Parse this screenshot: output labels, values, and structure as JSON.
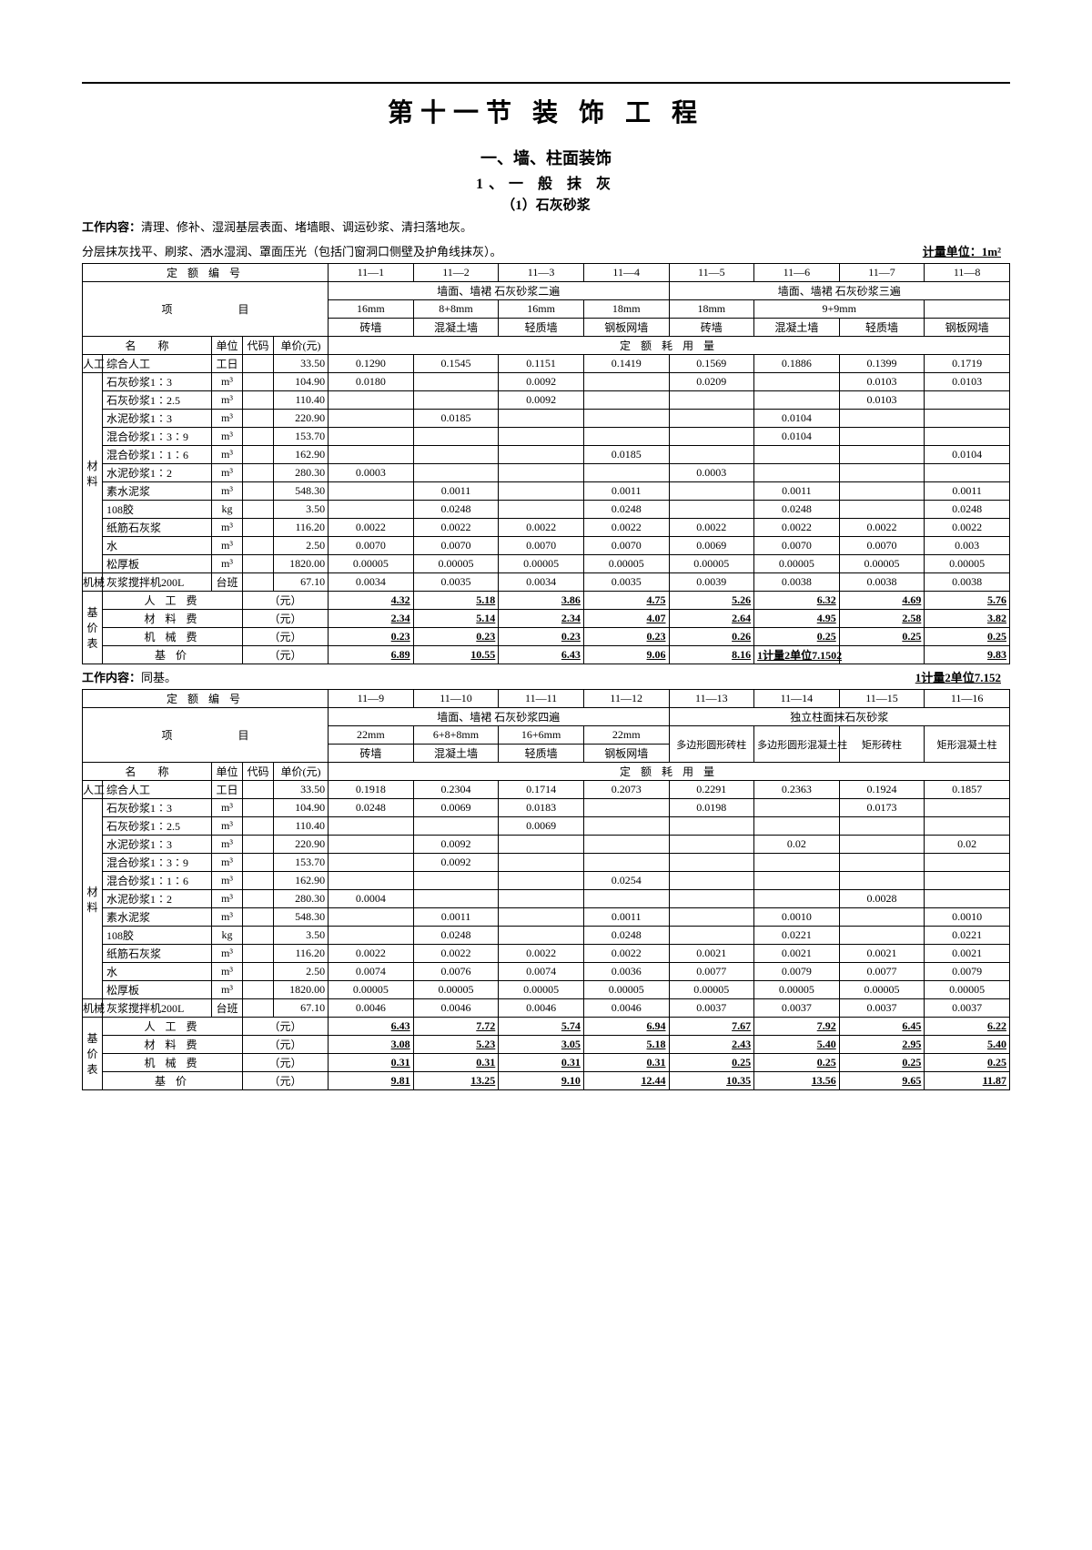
{
  "page_title": "第十一节 装 饰 工 程",
  "section_title": "一、墙、柱面装饰",
  "sub_title": "1、一 般 抹 灰",
  "sub_sub_title": "（1）石灰砂浆",
  "work_desc_label": "工作内容：",
  "work_desc_1": "清理、修补、湿润基层表面、堵墙眼、调运砂浆、清扫落地灰。",
  "work_desc_2": "分层抹灰找平、刷浆、洒水湿润、罩面压光（包括门窗洞口侧壁及护角线抹灰）。",
  "unit_note": "计量单位：1m²",
  "row_labels": {
    "dingebian": "定   额   编   号",
    "xiang": "项",
    "mu": "目",
    "ming": "名",
    "cheng": "称",
    "danwei": "单位",
    "daima": "代码",
    "danjia": "单价(元)",
    "de_hao_label": "定   额   耗   用   量",
    "rengong": "人工",
    "cailiao": "材料",
    "jixie": "机械",
    "jijia": "基价表",
    "rengongfei": "人 工 费",
    "cailiaofei": "材 料 费",
    "jixiefei": "机 械 费",
    "jijia2": "基    价",
    "yuan": "（元）",
    "work2_label": "工作内容：",
    "work2_text": "同基。"
  },
  "materials": [
    {
      "name": "综合人工",
      "unit": "工日",
      "price": "33.50"
    },
    {
      "name": "石灰砂浆1∶3",
      "unit": "m³",
      "price": "104.90"
    },
    {
      "name": "石灰砂浆1∶2.5",
      "unit": "m³",
      "price": "110.40"
    },
    {
      "name": "水泥砂浆1∶3",
      "unit": "m³",
      "price": "220.90"
    },
    {
      "name": "混合砂浆1∶3∶9",
      "unit": "m³",
      "price": "153.70"
    },
    {
      "name": "混合砂浆1∶1∶6",
      "unit": "m³",
      "price": "162.90"
    },
    {
      "name": "水泥砂浆1∶2",
      "unit": "m³",
      "price": "280.30"
    },
    {
      "name": "素水泥浆",
      "unit": "m³",
      "price": "548.30"
    },
    {
      "name": "108胶",
      "unit": "kg",
      "price": "3.50"
    },
    {
      "name": "纸筋石灰浆",
      "unit": "m³",
      "price": "116.20"
    },
    {
      "name": "水",
      "unit": "m³",
      "price": "2.50"
    },
    {
      "name": "松厚板",
      "unit": "m³",
      "price": "1820.00"
    },
    {
      "name": "灰浆搅拌机200L",
      "unit": "台班",
      "price": "67.10"
    }
  ],
  "t1": {
    "codes": [
      "11—1",
      "11—2",
      "11—3",
      "11—4",
      "11—5",
      "11—6",
      "11—7",
      "11—8"
    ],
    "group_a": "墙面、墙裙 石灰砂浆二遍",
    "group_b": "墙面、墙裙 石灰砂浆三遍",
    "thick_a": [
      "16mm",
      "8+8mm",
      "16mm",
      "18mm"
    ],
    "thick_b": "9+9mm",
    "walls": [
      "砖墙",
      "混凝土墙",
      "轻质墙",
      "钢板网墙",
      "砖墙",
      "混凝土墙",
      "轻质墙",
      "钢板网墙"
    ],
    "rows": [
      [
        "0.1290",
        "0.1545",
        "0.1151",
        "0.1419",
        "0.1569",
        "0.1886",
        "0.1399",
        "0.1719"
      ],
      [
        "0.0180",
        "",
        "0.0092",
        "",
        "0.0209",
        "",
        "0.0103",
        "0.0103"
      ],
      [
        "",
        "",
        "0.0092",
        "",
        "",
        "",
        "0.0103",
        ""
      ],
      [
        "",
        "0.0185",
        "",
        "",
        "",
        "0.0104",
        "",
        ""
      ],
      [
        "",
        "",
        "",
        "",
        "",
        "0.0104",
        "",
        ""
      ],
      [
        "",
        "",
        "",
        "0.0185",
        "",
        "",
        "",
        "0.0104"
      ],
      [
        "0.0003",
        "",
        "",
        "",
        "0.0003",
        "",
        "",
        ""
      ],
      [
        "",
        "0.0011",
        "",
        "0.0011",
        "",
        "0.0011",
        "",
        "0.0011"
      ],
      [
        "",
        "0.0248",
        "",
        "0.0248",
        "",
        "0.0248",
        "",
        "0.0248"
      ],
      [
        "0.0022",
        "0.0022",
        "0.0022",
        "0.0022",
        "0.0022",
        "0.0022",
        "0.0022",
        "0.0022"
      ],
      [
        "0.0070",
        "0.0070",
        "0.0070",
        "0.0070",
        "0.0069",
        "0.0070",
        "0.0070",
        "0.003"
      ],
      [
        "0.00005",
        "0.00005",
        "0.00005",
        "0.00005",
        "0.00005",
        "0.00005",
        "0.00005",
        "0.00005"
      ],
      [
        "0.0034",
        "0.0035",
        "0.0034",
        "0.0035",
        "0.0039",
        "0.0038",
        "0.0038",
        "0.0038"
      ]
    ],
    "fee": [
      [
        "4.32",
        "5.18",
        "3.86",
        "4.75",
        "5.26",
        "6.32",
        "4.69",
        "5.76"
      ],
      [
        "2.34",
        "5.14",
        "2.34",
        "4.07",
        "2.64",
        "4.95",
        "2.58",
        "3.82"
      ],
      [
        "0.23",
        "0.23",
        "0.23",
        "0.23",
        "0.26",
        "0.25",
        "0.25",
        "0.25"
      ],
      [
        "6.89",
        "10.55",
        "6.43",
        "9.06",
        "8.16",
        "1计量2单位7.1502",
        "",
        "9.83"
      ]
    ],
    "unit_note2": "1计量2单位7.152"
  },
  "t2": {
    "codes": [
      "11—9",
      "11—10",
      "11—11",
      "11—12",
      "11—13",
      "11—14",
      "11—15",
      "11—16"
    ],
    "group_a": "墙面、墙裙 石灰砂浆四遍",
    "group_b": "独立柱面抹石灰砂浆",
    "thick_a": [
      "22mm",
      "6+8+8mm",
      "16+6mm",
      "22mm"
    ],
    "cols_b": [
      "多边形圆形砖柱",
      "多边形圆形混凝土柱",
      "矩形砖柱",
      "矩形混凝土柱"
    ],
    "walls_a": [
      "砖墙",
      "混凝土墙",
      "轻质墙",
      "钢板网墙"
    ],
    "rows": [
      [
        "0.1918",
        "0.2304",
        "0.1714",
        "0.2073",
        "0.2291",
        "0.2363",
        "0.1924",
        "0.1857"
      ],
      [
        "0.0248",
        "0.0069",
        "0.0183",
        "",
        "0.0198",
        "",
        "0.0173",
        ""
      ],
      [
        "",
        "",
        "0.0069",
        "",
        "",
        "",
        "",
        ""
      ],
      [
        "",
        "0.0092",
        "",
        "",
        "",
        "0.02",
        "",
        "0.02"
      ],
      [
        "",
        "0.0092",
        "",
        "",
        "",
        "",
        "",
        ""
      ],
      [
        "",
        "",
        "",
        "0.0254",
        "",
        "",
        "",
        ""
      ],
      [
        "0.0004",
        "",
        "",
        "",
        "",
        "",
        "0.0028",
        ""
      ],
      [
        "",
        "0.0011",
        "",
        "0.0011",
        "",
        "0.0010",
        "",
        "0.0010"
      ],
      [
        "",
        "0.0248",
        "",
        "0.0248",
        "",
        "0.0221",
        "",
        "0.0221"
      ],
      [
        "0.0022",
        "0.0022",
        "0.0022",
        "0.0022",
        "0.0021",
        "0.0021",
        "0.0021",
        "0.0021"
      ],
      [
        "0.0074",
        "0.0076",
        "0.0074",
        "0.0036",
        "0.0077",
        "0.0079",
        "0.0077",
        "0.0079"
      ],
      [
        "0.00005",
        "0.00005",
        "0.00005",
        "0.00005",
        "0.00005",
        "0.00005",
        "0.00005",
        "0.00005"
      ],
      [
        "0.0046",
        "0.0046",
        "0.0046",
        "0.0046",
        "0.0037",
        "0.0037",
        "0.0037",
        "0.0037"
      ]
    ],
    "fee": [
      [
        "6.43",
        "7.72",
        "5.74",
        "6.94",
        "7.67",
        "7.92",
        "6.45",
        "6.22"
      ],
      [
        "3.08",
        "5.23",
        "3.05",
        "5.18",
        "2.43",
        "5.40",
        "2.95",
        "5.40"
      ],
      [
        "0.31",
        "0.31",
        "0.31",
        "0.31",
        "0.25",
        "0.25",
        "0.25",
        "0.25"
      ],
      [
        "9.81",
        "13.25",
        "9.10",
        "12.44",
        "10.35",
        "13.56",
        "9.65",
        "11.87"
      ]
    ]
  }
}
